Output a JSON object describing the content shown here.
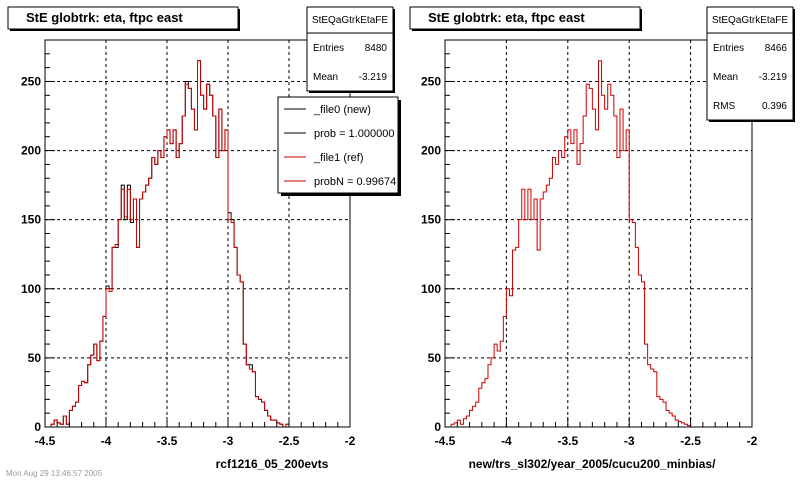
{
  "colors": {
    "new": "#000000",
    "ref": "#cc0000",
    "shadow": "#000000"
  },
  "chart_data": [
    {
      "type": "histogram",
      "title": "StE globtrk: eta, ftpc east",
      "xlabel": "rcf1216_05_200evts",
      "xlim": [
        -4.5,
        -2
      ],
      "ylim": [
        0,
        280
      ],
      "xticks": [
        "-4.5",
        "-4",
        "-3.5",
        "-3",
        "-2.5",
        "-2"
      ],
      "yticks": [
        "0",
        "50",
        "100",
        "150",
        "200",
        "250"
      ],
      "grid": true,
      "stats": {
        "name": "StEQaGtrkEtaFE",
        "rows": [
          {
            "label": "Entries",
            "value": "8480"
          },
          {
            "label": "Mean",
            "value": "-3.219"
          }
        ]
      },
      "legend": {
        "placement": "top-right",
        "entries": [
          {
            "label": "_file0 (new)",
            "color": "#000000"
          },
          {
            "label": "prob = 1.000000",
            "color": "#000000"
          },
          {
            "label": "_file1 (ref)",
            "color": "#cc0000"
          },
          {
            "label": "probN = 0.99674",
            "color": "#cc0000"
          }
        ]
      },
      "series": [
        {
          "name": "_file0 (new)",
          "color": "#000000",
          "bins_start": -4.5,
          "bin_width": 0.025,
          "values": [
            0,
            0,
            2,
            5,
            3,
            2,
            8,
            2,
            12,
            15,
            18,
            30,
            33,
            32,
            45,
            52,
            60,
            48,
            62,
            80,
            102,
            100,
            130,
            130,
            150,
            175,
            150,
            175,
            148,
            165,
            130,
            165,
            170,
            175,
            180,
            195,
            190,
            200,
            195,
            210,
            215,
            205,
            215,
            195,
            205,
            225,
            250,
            245,
            230,
            215,
            265,
            240,
            230,
            248,
            240,
            225,
            195,
            230,
            200,
            215,
            155,
            150,
            130,
            110,
            105,
            60,
            45,
            45,
            40,
            22,
            20,
            18,
            12,
            8,
            5,
            5,
            3,
            2,
            0,
            2,
            0,
            0,
            0,
            0,
            0,
            0,
            0,
            0,
            0,
            0,
            0,
            0,
            0,
            0,
            0,
            0,
            0,
            0,
            0,
            0
          ]
        },
        {
          "name": "_file1 (ref)",
          "color": "#cc0000",
          "bins_start": -4.5,
          "bin_width": 0.025,
          "values": [
            0,
            0,
            2,
            5,
            3,
            2,
            8,
            2,
            12,
            15,
            18,
            30,
            33,
            32,
            45,
            52,
            60,
            48,
            62,
            80,
            100,
            98,
            130,
            132,
            150,
            172,
            152,
            172,
            150,
            165,
            130,
            165,
            170,
            175,
            180,
            195,
            190,
            200,
            195,
            210,
            215,
            205,
            215,
            195,
            205,
            225,
            248,
            245,
            230,
            215,
            265,
            240,
            230,
            248,
            240,
            225,
            195,
            230,
            200,
            215,
            150,
            148,
            130,
            110,
            105,
            60,
            45,
            42,
            40,
            22,
            20,
            18,
            12,
            8,
            5,
            5,
            3,
            2,
            0,
            2,
            0,
            0,
            0,
            0,
            0,
            0,
            0,
            0,
            0,
            0,
            0,
            0,
            0,
            0,
            0,
            0,
            0,
            0,
            0,
            0
          ]
        }
      ]
    },
    {
      "type": "histogram",
      "title": "StE globtrk: eta, ftpc east",
      "xlabel": "new/trs_sl302/year_2005/cucu200_minbias/",
      "xlim": [
        -4.5,
        -2
      ],
      "ylim": [
        0,
        280
      ],
      "xticks": [
        "-4.5",
        "-4",
        "-3.5",
        "-3",
        "-2.5",
        "-2"
      ],
      "yticks": [
        "0",
        "50",
        "100",
        "150",
        "200",
        "250"
      ],
      "grid": true,
      "stats": {
        "name": "StEQaGtrkEtaFE",
        "rows": [
          {
            "label": "Entries",
            "value": "8466"
          },
          {
            "label": "Mean",
            "value": "-3.219"
          },
          {
            "label": "RMS",
            "value": "0.396"
          }
        ]
      },
      "series": [
        {
          "name": "",
          "color": "#cc0000",
          "bins_start": -4.5,
          "bin_width": 0.025,
          "values": [
            0,
            0,
            2,
            3,
            5,
            2,
            6,
            8,
            12,
            15,
            18,
            28,
            32,
            35,
            45,
            50,
            60,
            55,
            62,
            80,
            100,
            95,
            128,
            130,
            150,
            172,
            150,
            172,
            150,
            165,
            128,
            165,
            170,
            175,
            180,
            195,
            190,
            200,
            195,
            210,
            215,
            205,
            215,
            190,
            205,
            225,
            248,
            245,
            230,
            215,
            265,
            240,
            230,
            248,
            240,
            225,
            195,
            230,
            200,
            215,
            150,
            148,
            130,
            110,
            105,
            60,
            45,
            42,
            40,
            22,
            20,
            18,
            12,
            10,
            8,
            5,
            4,
            3,
            2,
            1,
            0,
            0,
            0,
            0,
            0,
            0,
            0,
            0,
            0,
            0,
            0,
            0,
            0,
            0,
            0,
            0,
            0,
            0,
            0,
            0
          ]
        }
      ]
    }
  ],
  "footer_text": "Mon Aug 29 13:46:57 2005"
}
